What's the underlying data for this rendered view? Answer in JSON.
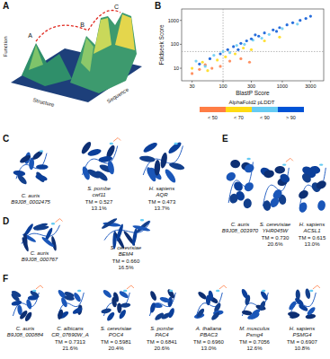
{
  "panels": {
    "A": {
      "label": "A",
      "axes": [
        "Function",
        "Structure",
        "Sequence"
      ],
      "points": [
        "A",
        "B",
        "C"
      ]
    },
    "B": {
      "label": "B"
    },
    "C": {
      "label": "C",
      "proteins": [
        {
          "species": "C. auris",
          "gene": "B9J08_0002475"
        },
        {
          "species": "S. pombe",
          "gene": "cwf11",
          "tm": "TM = 0.527",
          "identity": "13.1%"
        },
        {
          "species": "H. sapiens",
          "gene": "AQR",
          "tm": "TM = 0.473",
          "identity": "13.7%"
        }
      ]
    },
    "D": {
      "label": "D",
      "proteins": [
        {
          "species": "C. auris",
          "gene": "B9J08_000767"
        },
        {
          "species": "S. cerevisiae",
          "gene": "BEM4",
          "tm": "TM = 0.660",
          "identity": "16.5%"
        }
      ]
    },
    "E": {
      "label": "E",
      "proteins": [
        {
          "species": "C. auris",
          "gene": "B9J08_003970"
        },
        {
          "species": "S. cerevisiae",
          "gene": "YHR045W",
          "tm": "TM = 0.730",
          "identity": "20.6%"
        },
        {
          "species": "H. sapiens",
          "gene": "ACSL1",
          "tm": "TM = 0.615",
          "identity": "13.0%"
        }
      ]
    },
    "F": {
      "label": "F",
      "proteins": [
        {
          "species": "C. auris",
          "gene": "B9J08_000884"
        },
        {
          "species": "C. albicans",
          "gene": "CR_07690W_A",
          "tm": "TM = 0.7313",
          "identity": "21.6%"
        },
        {
          "species": "S. cerevisiae",
          "gene": "POC4",
          "tm": "TM = 0.5981",
          "identity": "20.4%"
        },
        {
          "species": "S. pombe",
          "gene": "PAC4",
          "tm": "TM = 0.6841",
          "identity": "20.6%"
        },
        {
          "species": "A. thaliana",
          "gene": "PBAC3",
          "tm": "TM = 0.6960",
          "identity": "13.0%"
        },
        {
          "species": "M. musculus",
          "gene": "Psmg4",
          "tm": "TM = 0.7056",
          "identity": "12.6%"
        },
        {
          "species": "H. sapiens",
          "gene": "PSMG4",
          "tm": "TM = 0.6907",
          "identity": "10.8%"
        }
      ]
    }
  },
  "chart_data": {
    "type": "scatter",
    "x_label": "BlastP Score",
    "y_label": "Foldseek Score",
    "colorbar_label": "AlphaFold2 pLDDT",
    "log": true,
    "grid": false,
    "xlim": [
      20,
      5000
    ],
    "ylim": [
      3,
      3000
    ],
    "xticks": [
      30,
      100,
      300,
      1000,
      3000
    ],
    "yticks": [
      10,
      100,
      1000
    ],
    "reference_lines": [
      {
        "axis": "x",
        "value": 100
      },
      {
        "axis": "y",
        "value": 50
      }
    ],
    "series": [
      {
        "name": "< 50",
        "color": "#ff7d45",
        "x": [
          30,
          40,
          50,
          65,
          90,
          130,
          200,
          280
        ],
        "values": [
          6,
          9,
          14,
          10,
          12,
          20,
          25,
          18
        ]
      },
      {
        "name": "< 70",
        "color": "#ffdb13",
        "x": [
          30,
          45,
          55,
          80,
          110,
          160,
          220,
          300,
          500,
          900
        ],
        "values": [
          10,
          18,
          8,
          22,
          30,
          40,
          70,
          60,
          140,
          200
        ]
      },
      {
        "name": "< 90",
        "color": "#65cbf3",
        "x": [
          35,
          50,
          70,
          100,
          130,
          170,
          230,
          320,
          450,
          600,
          1000,
          1800
        ],
        "values": [
          20,
          12,
          35,
          50,
          45,
          90,
          100,
          150,
          180,
          260,
          450,
          700
        ]
      },
      {
        "name": "> 90",
        "color": "#0053d6",
        "x": [
          40,
          60,
          90,
          120,
          150,
          200,
          250,
          300,
          400,
          500,
          700,
          900,
          1200,
          1500,
          2000,
          2500,
          3000,
          800,
          350,
          180
        ],
        "values": [
          15,
          25,
          40,
          60,
          80,
          110,
          140,
          170,
          220,
          300,
          400,
          500,
          650,
          800,
          1000,
          1200,
          1500,
          350,
          250,
          60
        ]
      }
    ]
  }
}
